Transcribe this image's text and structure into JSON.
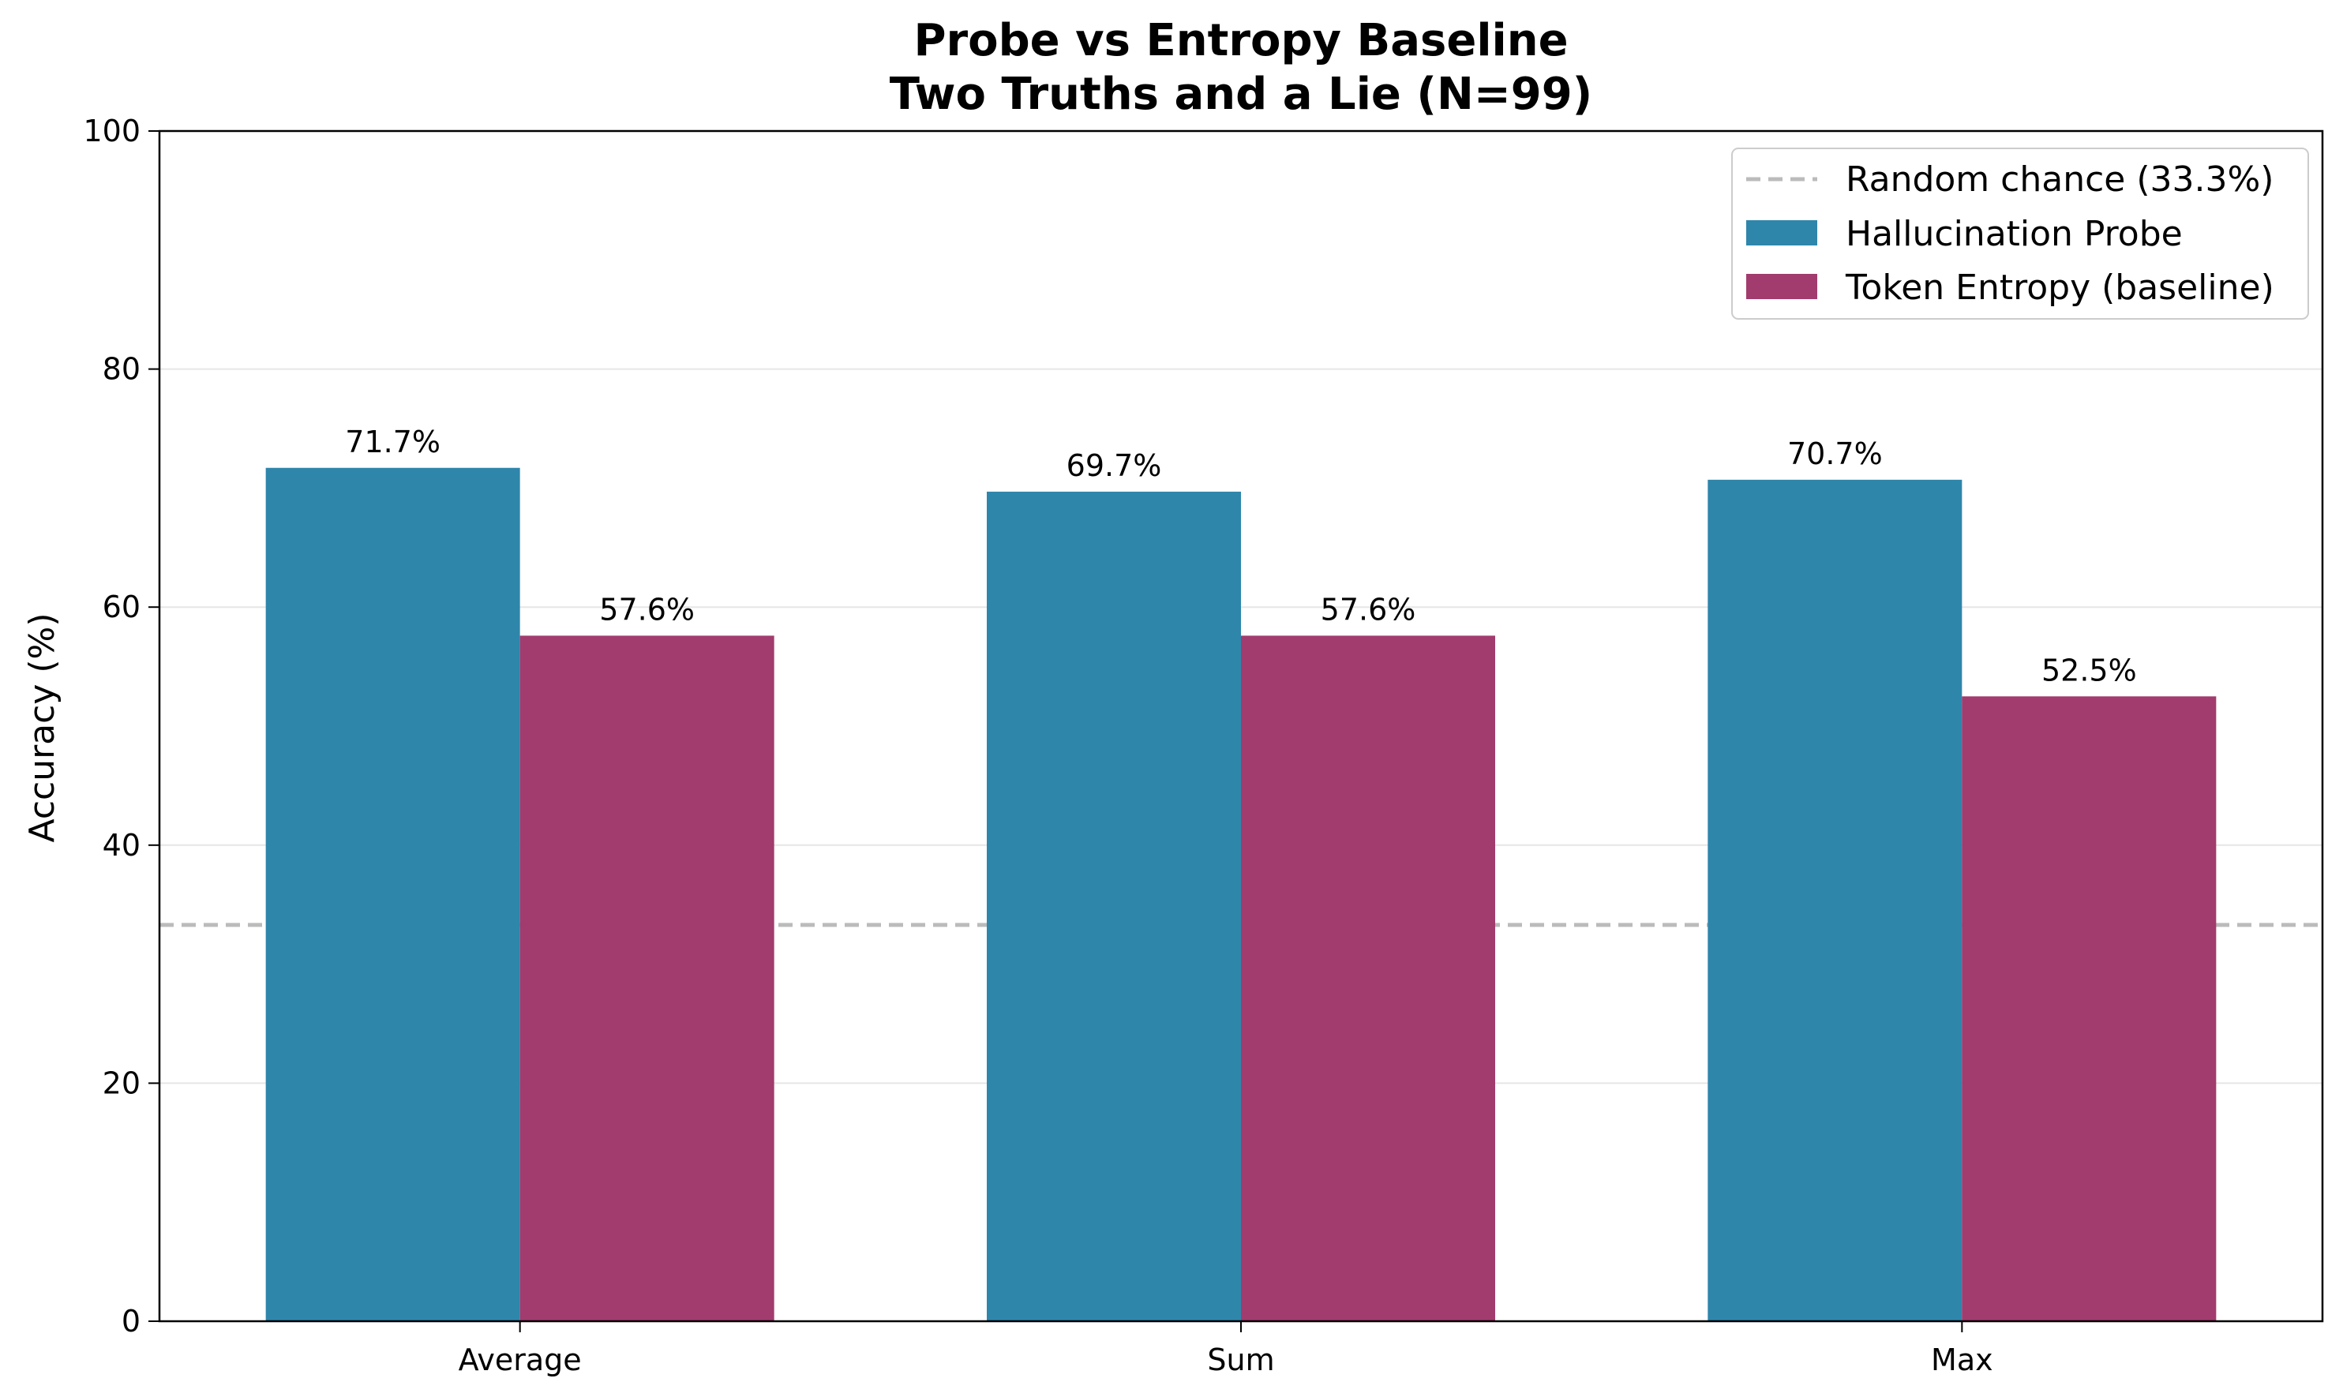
{
  "chart_data": {
    "type": "bar",
    "title": "Probe vs Entropy Baseline",
    "subtitle": "Two Truths and a Lie (N=99)",
    "xlabel": "",
    "ylabel": "Accuracy (%)",
    "ylim": [
      0,
      100
    ],
    "yticks": [
      "0",
      "20",
      "40",
      "60",
      "80",
      "100"
    ],
    "categories": [
      "Average",
      "Sum",
      "Max"
    ],
    "grid": "y",
    "legend_position": "top-right",
    "series": [
      {
        "name": "Hallucination Probe",
        "color": "#2e86ab",
        "values": [
          71.7,
          69.7,
          70.7
        ],
        "labels": [
          "71.7%",
          "69.7%",
          "70.7%"
        ]
      },
      {
        "name": "Token Entropy (baseline)",
        "color": "#a23b6e",
        "values": [
          57.6,
          57.6,
          52.5
        ],
        "labels": [
          "57.6%",
          "57.6%",
          "52.5%"
        ]
      }
    ],
    "reference_line": {
      "name": "Random chance (33.3%)",
      "value": 33.3,
      "color": "#bbbbbb"
    }
  }
}
